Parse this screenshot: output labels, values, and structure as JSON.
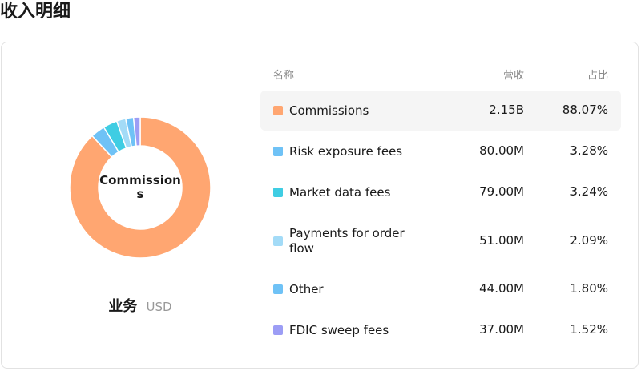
{
  "header": {
    "title": "收入明细"
  },
  "chart_data": {
    "type": "pie",
    "center_label": "Commissions",
    "caption": "业务",
    "unit": "USD",
    "columns": [
      "名称",
      "营收",
      "占比"
    ],
    "categories": [
      "Commissions",
      "Risk exposure fees",
      "Market data fees",
      "Payments for order flow",
      "Other",
      "FDIC sweep fees"
    ],
    "colors": [
      "#ffa671",
      "#6fc2f6",
      "#3fcde3",
      "#a3dbf7",
      "#6fc2f6",
      "#9c9df5"
    ],
    "revenue_labels": [
      "2.15B",
      "80.00M",
      "79.00M",
      "51.00M",
      "44.00M",
      "37.00M"
    ],
    "values": [
      88.07,
      3.28,
      3.24,
      2.09,
      1.8,
      1.52
    ],
    "value_labels": [
      "88.07%",
      "3.28%",
      "3.24%",
      "2.09%",
      "1.80%",
      "1.52%"
    ],
    "highlight": 0
  }
}
